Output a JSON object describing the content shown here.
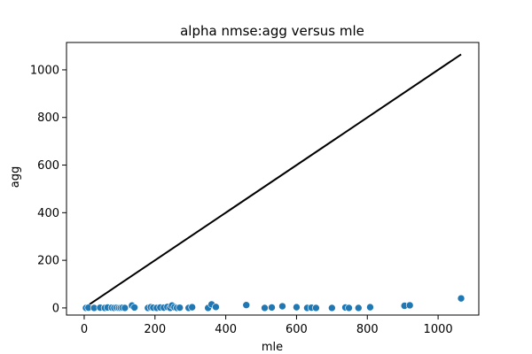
{
  "chart_data": {
    "type": "scatter",
    "title": "alpha nmse:agg versus mle",
    "xlabel": "mle",
    "ylabel": "agg",
    "xlim": [
      -50,
      1115
    ],
    "ylim": [
      -30,
      1115
    ],
    "xticks": [
      0,
      200,
      400,
      600,
      800,
      1000
    ],
    "yticks": [
      0,
      200,
      400,
      600,
      800,
      1000
    ],
    "grid": false,
    "point_color": "#1f77b4",
    "line_color": "#000000",
    "reference_line": {
      "x": [
        0,
        1065
      ],
      "y": [
        0,
        1065
      ]
    },
    "points": [
      {
        "x": 5,
        "y": 0
      },
      {
        "x": 12,
        "y": 1
      },
      {
        "x": 28,
        "y": 0
      },
      {
        "x": 45,
        "y": 1
      },
      {
        "x": 58,
        "y": 0
      },
      {
        "x": 66,
        "y": 2
      },
      {
        "x": 78,
        "y": 1
      },
      {
        "x": 85,
        "y": 0
      },
      {
        "x": 92,
        "y": 1
      },
      {
        "x": 98,
        "y": 0
      },
      {
        "x": 103,
        "y": 0
      },
      {
        "x": 108,
        "y": 1
      },
      {
        "x": 115,
        "y": 0
      },
      {
        "x": 135,
        "y": 10
      },
      {
        "x": 142,
        "y": 2
      },
      {
        "x": 180,
        "y": 0
      },
      {
        "x": 188,
        "y": 3
      },
      {
        "x": 195,
        "y": 1
      },
      {
        "x": 205,
        "y": 0
      },
      {
        "x": 215,
        "y": 2
      },
      {
        "x": 225,
        "y": 1
      },
      {
        "x": 235,
        "y": 4
      },
      {
        "x": 243,
        "y": 0
      },
      {
        "x": 248,
        "y": 10
      },
      {
        "x": 255,
        "y": 3
      },
      {
        "x": 262,
        "y": 0
      },
      {
        "x": 270,
        "y": 1
      },
      {
        "x": 295,
        "y": 0
      },
      {
        "x": 305,
        "y": 3
      },
      {
        "x": 350,
        "y": 0
      },
      {
        "x": 360,
        "y": 15
      },
      {
        "x": 372,
        "y": 4
      },
      {
        "x": 458,
        "y": 12
      },
      {
        "x": 510,
        "y": 0
      },
      {
        "x": 530,
        "y": 2
      },
      {
        "x": 560,
        "y": 7
      },
      {
        "x": 600,
        "y": 3
      },
      {
        "x": 630,
        "y": 0
      },
      {
        "x": 642,
        "y": 1
      },
      {
        "x": 655,
        "y": 0
      },
      {
        "x": 700,
        "y": 0
      },
      {
        "x": 738,
        "y": 2
      },
      {
        "x": 748,
        "y": 0
      },
      {
        "x": 775,
        "y": 0
      },
      {
        "x": 808,
        "y": 3
      },
      {
        "x": 905,
        "y": 9
      },
      {
        "x": 920,
        "y": 11
      },
      {
        "x": 1065,
        "y": 40
      }
    ]
  }
}
